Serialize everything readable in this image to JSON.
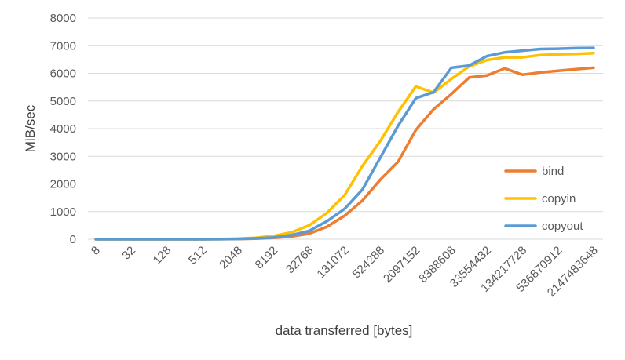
{
  "chart_data": {
    "type": "line",
    "title": "",
    "xlabel": "data transferred [bytes]",
    "ylabel": "MiB/sec",
    "ylim": [
      0,
      8000
    ],
    "yticks": [
      "0",
      "1000",
      "2000",
      "3000",
      "4000",
      "5000",
      "6000",
      "7000",
      "8000"
    ],
    "x": [
      "8",
      "16",
      "32",
      "64",
      "128",
      "256",
      "512",
      "1024",
      "2048",
      "4096",
      "8192",
      "16384",
      "32768",
      "65536",
      "131072",
      "262144",
      "524288",
      "1048576",
      "2097152",
      "4194304",
      "8388608",
      "16777216",
      "33554432",
      "67108864",
      "134217728",
      "268435456",
      "536870912",
      "1073741824",
      "2147483648"
    ],
    "xtick_labels": [
      "8",
      "32",
      "128",
      "512",
      "2048",
      "8192",
      "32768",
      "131072",
      "524288",
      "2097152",
      "8388608",
      "33554432",
      "134217728",
      "536870912",
      "2147483648"
    ],
    "grid": true,
    "legend_position": "right",
    "series": [
      {
        "name": "bind",
        "color": "#ED7D31",
        "values": [
          0,
          0,
          0,
          0,
          0,
          0,
          0,
          2,
          8,
          20,
          50,
          100,
          200,
          450,
          850,
          1400,
          2150,
          2800,
          3950,
          4700,
          5250,
          5850,
          5920,
          6180,
          5950,
          6030,
          6090,
          6150,
          6200
        ]
      },
      {
        "name": "copyin",
        "color": "#FFC000",
        "values": [
          0,
          0,
          0,
          0,
          0,
          0,
          0,
          5,
          20,
          50,
          120,
          250,
          500,
          950,
          1600,
          2650,
          3550,
          4600,
          5530,
          5300,
          5800,
          6250,
          6480,
          6580,
          6580,
          6660,
          6690,
          6700,
          6730
        ]
      },
      {
        "name": "copyout",
        "color": "#5B9BD5",
        "values": [
          0,
          0,
          0,
          0,
          0,
          0,
          0,
          3,
          10,
          30,
          60,
          150,
          300,
          650,
          1100,
          1800,
          2950,
          4100,
          5100,
          5320,
          6200,
          6280,
          6620,
          6760,
          6820,
          6880,
          6890,
          6910,
          6920
        ]
      }
    ]
  }
}
